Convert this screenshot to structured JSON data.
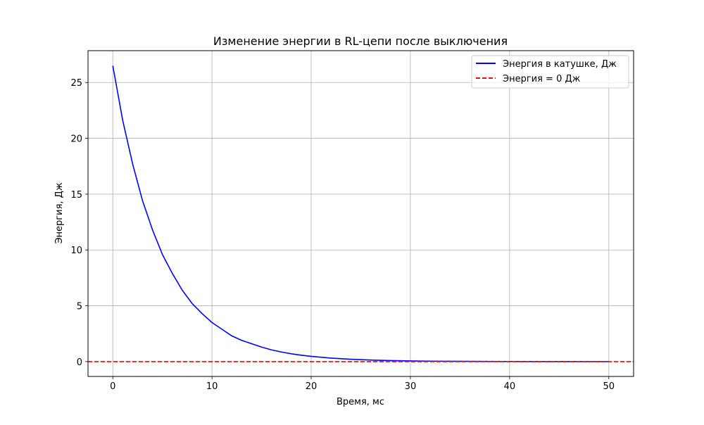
{
  "chart_data": {
    "type": "line",
    "title": "Изменение энергии в RL-цепи после выключения",
    "xlabel": "Время, мс",
    "ylabel": "Энергия, Дж",
    "xlim": [
      -2.5,
      52.5
    ],
    "ylim": [
      -1.33,
      27.85
    ],
    "xticks": [
      0,
      10,
      20,
      30,
      40,
      50
    ],
    "yticks": [
      0,
      5,
      10,
      15,
      20,
      25
    ],
    "grid": true,
    "legend_position": "top-right",
    "series": [
      {
        "name": "Энергия в катушке, Дж",
        "color": "#0000ff",
        "style": "solid",
        "x": [
          0,
          1,
          2,
          3,
          4,
          5,
          6,
          7,
          8,
          9,
          10,
          11,
          12,
          13,
          14,
          15,
          16,
          17,
          18,
          19,
          20,
          22,
          24,
          26,
          28,
          30,
          32,
          34,
          36,
          38,
          40,
          42,
          44,
          46,
          48,
          50
        ],
        "y": [
          26.5,
          21.6,
          17.7,
          14.4,
          11.8,
          9.6,
          7.9,
          6.4,
          5.2,
          4.3,
          3.5,
          2.9,
          2.3,
          1.9,
          1.6,
          1.3,
          1.05,
          0.86,
          0.7,
          0.57,
          0.47,
          0.31,
          0.21,
          0.14,
          0.09,
          0.06,
          0.04,
          0.03,
          0.02,
          0.013,
          0.009,
          0.006,
          0.004,
          0.003,
          0.002,
          0.001
        ]
      },
      {
        "name": "Энергия = 0 Дж",
        "color": "#ff0000",
        "style": "dashed",
        "y_constant": 0
      }
    ]
  }
}
